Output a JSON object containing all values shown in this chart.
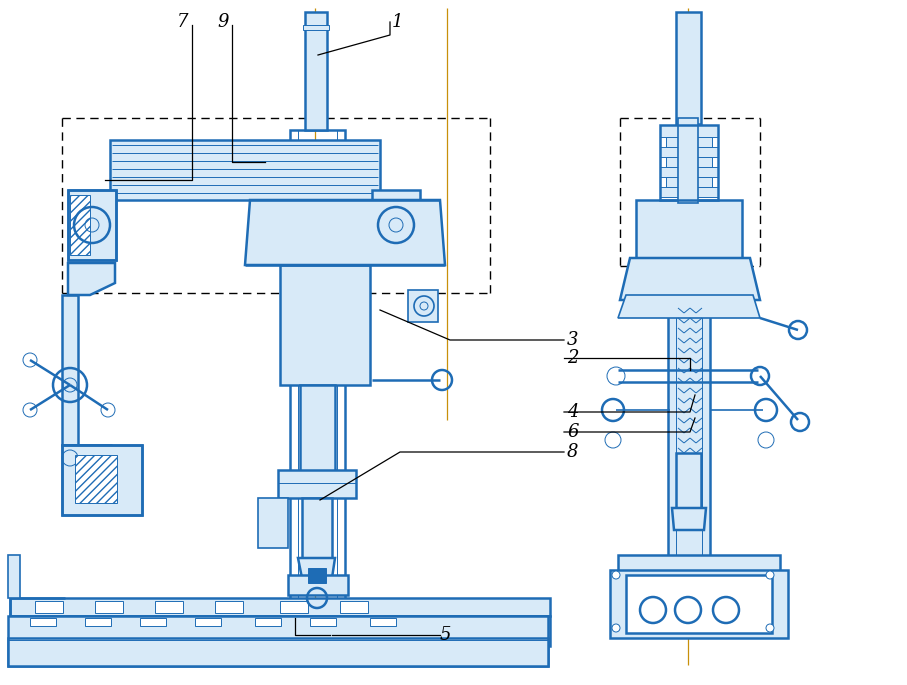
{
  "figsize": [
    9.07,
    6.85
  ],
  "dpi": 100,
  "bg_color": "#ffffff",
  "blue": "#1e6cb5",
  "orange_line": "#c8900a",
  "black": "#000000",
  "fill_light": "#d8eaf8",
  "fill_blue": "#1e6cb5"
}
